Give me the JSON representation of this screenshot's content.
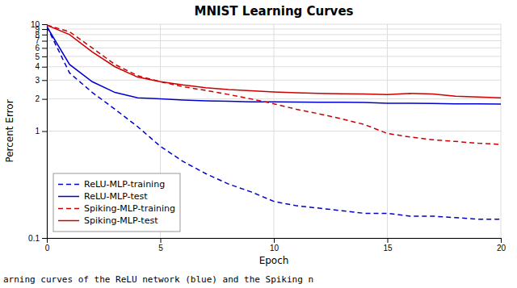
{
  "chart_data": {
    "type": "line",
    "title": "MNIST Learning Curves",
    "x_label": "Epoch",
    "y_label": "Percent Error",
    "caption": "arning curves of the ReLU network (blue) and the Spiking n",
    "log": "y",
    "grid": true,
    "legend": "lower left",
    "xlim": [
      0,
      20
    ],
    "ylim": [
      0.1,
      10
    ],
    "xticks": [
      0,
      5,
      10,
      15,
      20
    ],
    "yticks": [
      0.1,
      1,
      2,
      3,
      4,
      5,
      6,
      7,
      8,
      9,
      10
    ],
    "x": [
      0,
      1,
      2,
      3,
      4,
      5,
      6,
      7,
      8,
      9,
      10,
      11,
      12,
      13,
      14,
      15,
      16,
      17,
      18,
      19,
      20
    ],
    "series": [
      {
        "name": "ReLU-MLP-training",
        "color": "#0000cc",
        "line_style": "dashed",
        "values": [
          9.5,
          3.5,
          2.3,
          1.6,
          1.1,
          0.72,
          0.52,
          0.4,
          0.32,
          0.27,
          0.22,
          0.2,
          0.19,
          0.18,
          0.17,
          0.17,
          0.16,
          0.16,
          0.155,
          0.15,
          0.15
        ]
      },
      {
        "name": "ReLU-MLP-test",
        "color": "#0000cc",
        "line_style": "solid",
        "values": [
          9.5,
          4.2,
          2.9,
          2.3,
          2.05,
          2.0,
          1.95,
          1.92,
          1.9,
          1.88,
          1.88,
          1.87,
          1.86,
          1.86,
          1.85,
          1.82,
          1.82,
          1.81,
          1.8,
          1.8,
          1.79
        ]
      },
      {
        "name": "Spiking-MLP-training",
        "color": "#cc0000",
        "line_style": "dashed",
        "values": [
          9.8,
          8.5,
          6.0,
          4.2,
          3.3,
          2.9,
          2.6,
          2.4,
          2.2,
          2.0,
          1.8,
          1.6,
          1.45,
          1.3,
          1.15,
          0.95,
          0.88,
          0.83,
          0.8,
          0.77,
          0.75
        ]
      },
      {
        "name": "Spiking-MLP-test",
        "color": "#cc0000",
        "line_style": "solid",
        "values": [
          9.8,
          8.0,
          5.5,
          4.0,
          3.2,
          2.9,
          2.7,
          2.55,
          2.45,
          2.38,
          2.32,
          2.28,
          2.25,
          2.23,
          2.22,
          2.2,
          2.25,
          2.22,
          2.12,
          2.08,
          2.05
        ]
      }
    ]
  }
}
